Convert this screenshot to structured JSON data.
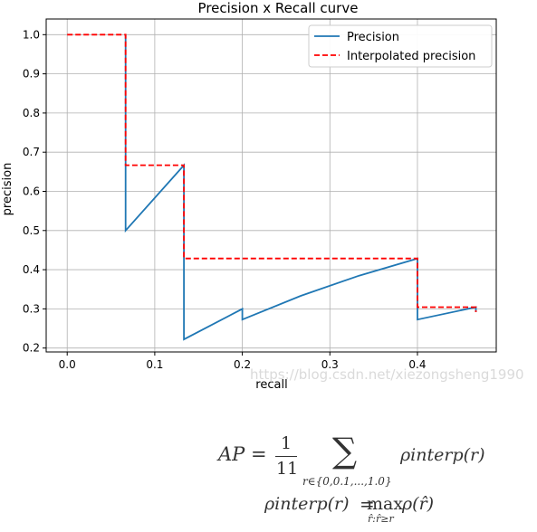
{
  "chart_data": {
    "type": "line",
    "title": "Precision x Recall curve",
    "xlabel": "recall",
    "ylabel": "precision",
    "xlim": [
      -0.024,
      0.49
    ],
    "ylim": [
      0.19,
      1.04
    ],
    "xticks": [
      0.0,
      0.1,
      0.2,
      0.3,
      0.4
    ],
    "xtick_labels": [
      "0.0",
      "0.1",
      "0.2",
      "0.3",
      "0.4"
    ],
    "yticks": [
      0.2,
      0.3,
      0.4,
      0.5,
      0.6,
      0.7,
      0.8,
      0.9,
      1.0
    ],
    "ytick_labels": [
      "0.2",
      "0.3",
      "0.4",
      "0.5",
      "0.6",
      "0.7",
      "0.8",
      "0.9",
      "1.0"
    ],
    "grid": true,
    "legend_position": "top-right",
    "series": [
      {
        "name": "Precision",
        "color": "#1f77b4",
        "style": "solid",
        "x": [
          0.0667,
          0.0667,
          0.0667,
          0.1333,
          0.1333,
          0.2,
          0.2,
          0.2667,
          0.3333,
          0.4,
          0.4,
          0.4667,
          0.4667
        ],
        "y": [
          1.0,
          0.6667,
          0.5,
          0.6667,
          0.2222,
          0.3,
          0.2727,
          0.3333,
          0.3846,
          0.4286,
          0.2727,
          0.3043,
          0.2917
        ]
      },
      {
        "name": "Interpolated precision",
        "color": "#ff0000",
        "style": "dashed",
        "x": [
          0.0,
          0.0667,
          0.0667,
          0.1333,
          0.1333,
          0.4,
          0.4,
          0.4667,
          0.4667
        ],
        "y": [
          1.0,
          1.0,
          0.6667,
          0.6667,
          0.4286,
          0.4286,
          0.3043,
          0.3043,
          0.2917
        ]
      }
    ]
  },
  "watermark": "https://blog.csdn.net/xiezongsheng1990",
  "formulas": {
    "ap_lhs": "AP",
    "eq": "=",
    "one": "1",
    "eleven": "11",
    "sum": "∑",
    "sum_index": "r∈{0,0.1,...,1.0}",
    "rho_interp_r": "ρinterp(r)",
    "max_word": "max",
    "max_index": "r̂:r̂≥r",
    "rho_hat": "ρ(r̂)"
  }
}
